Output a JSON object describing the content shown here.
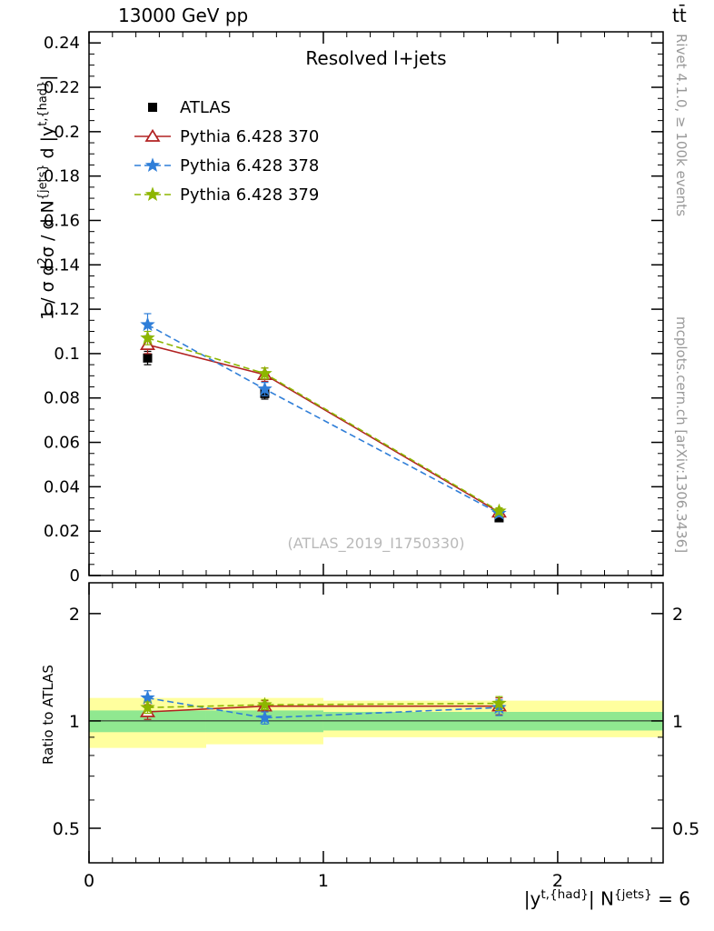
{
  "header": {
    "left": "13000 GeV pp",
    "right": "tt̄"
  },
  "main": {
    "title": "Resolved l+jets",
    "watermark": "(ATLAS_2019_I1750330)"
  },
  "side": {
    "rivet": "Rivet 4.1.0, ≥ 100k events",
    "mcplots": "mcplots.cern.ch [arXiv:1306.3436]"
  },
  "labels": {
    "y_main_parts": [
      {
        "t": "1 / σ d"
      },
      {
        "s": "2"
      },
      {
        "t": "σ / d N"
      },
      {
        "s": "{jets}"
      },
      {
        "t": " d |y"
      },
      {
        "s": "t,{had}"
      },
      {
        "t": "|"
      }
    ],
    "ratio_y": "Ratio to ATLAS",
    "x_parts": [
      {
        "t": "|y"
      },
      {
        "s": "t,{had}"
      },
      {
        "t": "| N"
      },
      {
        "s": "{jets}"
      },
      {
        "t": " = 6"
      }
    ]
  },
  "legend": [
    {
      "label": "ATLAS",
      "color": "#000000",
      "marker": "square",
      "line": "none"
    },
    {
      "label": "Pythia 6.428 370",
      "color": "#b22222",
      "marker": "triangle-open",
      "line": "solid"
    },
    {
      "label": "Pythia 6.428 378",
      "color": "#2f7ed8",
      "marker": "star",
      "line": "dashed"
    },
    {
      "label": "Pythia 6.428 379",
      "color": "#8db600",
      "marker": "star",
      "line": "dashed"
    }
  ],
  "chart_data": {
    "type": "line",
    "title": "Resolved l+jets",
    "x_axis_label": "|y^{t,{had}}| at N^{jets} = 6",
    "x": [
      0.25,
      0.75,
      1.75
    ],
    "x_range": [
      0,
      2.45
    ],
    "x_ticks_major": [
      0,
      1,
      2
    ],
    "x_tick_minor_step": 0.1,
    "main_panel": {
      "y_range": [
        0,
        0.245
      ],
      "y_ticks_major": [
        0,
        0.02,
        0.04,
        0.06,
        0.08,
        0.1,
        0.12,
        0.14,
        0.16,
        0.18,
        0.2,
        0.22,
        0.24
      ],
      "y_tick_minor_step": 0.005,
      "series": [
        {
          "name": "ATLAS",
          "values": [
            0.098,
            0.082,
            0.026
          ],
          "errors": [
            0.003,
            0.0025,
            0.0015
          ]
        },
        {
          "name": "Pythia 6.428 370",
          "values": [
            0.104,
            0.0905,
            0.0285
          ],
          "errors": [
            0.004,
            0.003,
            0.0015
          ]
        },
        {
          "name": "Pythia 6.428 378",
          "values": [
            0.113,
            0.084,
            0.028
          ],
          "errors": [
            0.005,
            0.003,
            0.0015
          ]
        },
        {
          "name": "Pythia 6.428 379",
          "values": [
            0.107,
            0.091,
            0.029
          ],
          "errors": [
            0.003,
            0.0025,
            0.0015
          ]
        }
      ]
    },
    "ratio_panel": {
      "y_range": [
        0.4,
        2.44
      ],
      "y_ticks_major": [
        0.5,
        1,
        2
      ],
      "y_ticks_minor": [
        0.6,
        0.7,
        0.8,
        0.9
      ],
      "unity_line": 1,
      "series": [
        {
          "name": "Pythia 6.428 370",
          "values": [
            1.06,
            1.1,
            1.1
          ],
          "errors": [
            0.05,
            0.04,
            0.06
          ]
        },
        {
          "name": "Pythia 6.428 378",
          "values": [
            1.16,
            1.02,
            1.09
          ],
          "errors": [
            0.055,
            0.04,
            0.055
          ]
        },
        {
          "name": "Pythia 6.428 379",
          "values": [
            1.09,
            1.11,
            1.12
          ],
          "errors": [
            0.04,
            0.035,
            0.05
          ]
        }
      ],
      "bands": [
        {
          "x0": 0.0,
          "x1": 0.5,
          "yellow": [
            0.84,
            1.16
          ],
          "green": [
            0.93,
            1.07
          ]
        },
        {
          "x0": 0.5,
          "x1": 1.0,
          "yellow": [
            0.86,
            1.16
          ],
          "green": [
            0.93,
            1.07
          ]
        },
        {
          "x0": 1.0,
          "x1": 2.45,
          "yellow": [
            0.9,
            1.14
          ],
          "green": [
            0.94,
            1.06
          ]
        }
      ],
      "band_colors": {
        "yellow": "#ffff9e",
        "green": "#90e890"
      }
    }
  }
}
